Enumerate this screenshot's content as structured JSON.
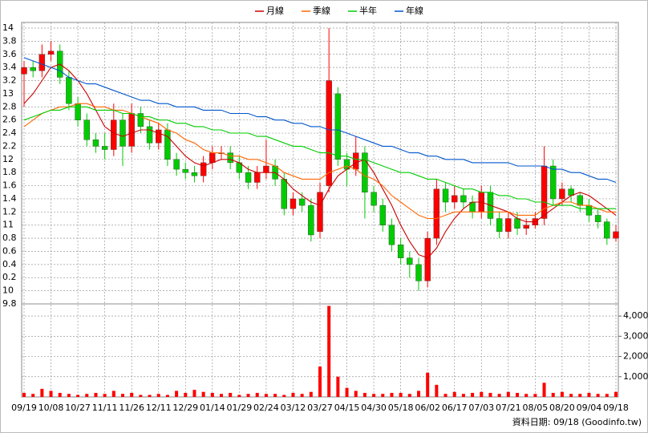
{
  "chart_data": {
    "type": "candlestick",
    "categories": [
      "09/19",
      null,
      null,
      "10/08",
      null,
      null,
      "10/27",
      null,
      null,
      "11/11",
      null,
      null,
      "11/26",
      null,
      null,
      "12/11",
      null,
      null,
      "12/29",
      null,
      null,
      "01/14",
      null,
      null,
      "01/29",
      null,
      null,
      "02/24",
      null,
      null,
      "03/12",
      null,
      null,
      "03/27",
      null,
      null,
      "04/15",
      null,
      null,
      "04/30",
      null,
      null,
      "05/18",
      null,
      null,
      "06/02",
      null,
      null,
      "06/17",
      null,
      null,
      "07/03",
      null,
      null,
      "07/21",
      null,
      null,
      "08/05",
      null,
      null,
      "08/20",
      null,
      null,
      "09/04",
      null,
      null,
      "09/18"
    ],
    "open": [
      13.3,
      13.4,
      13.35,
      13.6,
      13.65,
      13.25,
      12.85,
      12.6,
      12.3,
      12.2,
      12.15,
      12.6,
      12.2,
      12.7,
      12.5,
      12.25,
      12.45,
      12.0,
      11.85,
      11.8,
      11.75,
      11.95,
      12.1,
      12.1,
      11.95,
      11.8,
      11.65,
      11.8,
      11.9,
      11.7,
      11.25,
      11.4,
      11.3,
      10.9,
      11.6,
      13.0,
      12.0,
      11.85,
      12.1,
      11.5,
      11.3,
      11.0,
      10.7,
      10.5,
      10.4,
      10.15,
      10.8,
      11.55,
      11.35,
      11.45,
      11.35,
      11.2,
      11.5,
      11.1,
      10.9,
      11.1,
      10.95,
      11.0,
      11.1,
      11.9,
      11.4,
      11.55,
      11.45,
      11.3,
      11.15,
      11.05,
      10.8
    ],
    "high": [
      13.5,
      13.5,
      13.75,
      13.8,
      13.75,
      13.35,
      12.95,
      12.7,
      12.4,
      12.4,
      12.85,
      12.7,
      12.85,
      12.8,
      12.6,
      12.55,
      12.55,
      12.1,
      11.95,
      11.9,
      12.05,
      12.2,
      12.2,
      12.2,
      12.05,
      11.9,
      11.9,
      12.3,
      12.0,
      11.8,
      11.5,
      11.5,
      11.4,
      11.65,
      14.0,
      13.1,
      12.1,
      12.35,
      12.2,
      11.6,
      11.4,
      11.1,
      10.8,
      10.6,
      10.5,
      10.9,
      11.7,
      11.65,
      11.6,
      11.55,
      11.45,
      11.6,
      11.6,
      11.2,
      11.2,
      11.2,
      11.1,
      11.2,
      12.2,
      12.0,
      11.65,
      11.6,
      11.5,
      11.4,
      11.25,
      11.1,
      11.0
    ],
    "low": [
      12.8,
      13.25,
      13.25,
      13.5,
      13.15,
      12.75,
      12.5,
      12.2,
      12.1,
      12.0,
      12.05,
      11.9,
      12.1,
      12.4,
      12.15,
      12.15,
      11.9,
      11.75,
      11.7,
      11.65,
      11.65,
      11.85,
      12.0,
      11.85,
      11.7,
      11.55,
      11.55,
      11.7,
      11.6,
      11.15,
      11.15,
      11.2,
      10.75,
      10.8,
      11.5,
      11.9,
      11.6,
      11.75,
      11.1,
      11.2,
      10.9,
      10.6,
      10.4,
      10.2,
      10.0,
      10.05,
      10.7,
      11.2,
      11.25,
      11.25,
      11.1,
      11.1,
      11.0,
      10.8,
      10.8,
      10.85,
      10.85,
      10.95,
      11.0,
      11.3,
      11.3,
      11.35,
      11.2,
      11.05,
      10.95,
      10.7,
      10.75
    ],
    "close": [
      13.4,
      13.35,
      13.6,
      13.65,
      13.25,
      12.85,
      12.6,
      12.3,
      12.2,
      12.15,
      12.6,
      12.2,
      12.7,
      12.5,
      12.25,
      12.45,
      12.0,
      11.85,
      11.8,
      11.75,
      11.95,
      12.1,
      12.1,
      11.95,
      11.8,
      11.65,
      11.8,
      11.9,
      11.7,
      11.25,
      11.4,
      11.3,
      10.85,
      11.5,
      13.2,
      12.0,
      11.85,
      12.1,
      11.5,
      11.3,
      11.0,
      10.7,
      10.5,
      10.4,
      10.15,
      10.8,
      11.55,
      11.35,
      11.45,
      11.35,
      11.2,
      11.5,
      11.1,
      10.9,
      11.1,
      10.95,
      11.0,
      11.1,
      11.9,
      11.4,
      11.55,
      11.45,
      11.3,
      11.15,
      11.05,
      10.8,
      10.9
    ],
    "up_color": "#ff0000",
    "down_color": "#00cc00",
    "series": [
      {
        "name": "月線",
        "color": "#cc0000",
        "values": [
          12.85,
          13.0,
          13.2,
          13.4,
          13.45,
          13.35,
          13.2,
          13.0,
          12.75,
          12.5,
          12.4,
          12.35,
          12.4,
          12.45,
          12.45,
          12.4,
          12.35,
          12.2,
          12.05,
          11.95,
          11.9,
          11.95,
          12.0,
          12.0,
          11.95,
          11.85,
          11.8,
          11.8,
          11.8,
          11.7,
          11.55,
          11.45,
          11.35,
          11.3,
          11.55,
          11.75,
          11.85,
          11.95,
          12.0,
          11.8,
          11.55,
          11.3,
          11.0,
          10.75,
          10.55,
          10.5,
          10.65,
          10.9,
          11.1,
          11.25,
          11.35,
          11.35,
          11.3,
          11.25,
          11.2,
          11.1,
          11.05,
          11.05,
          11.15,
          11.25,
          11.35,
          11.45,
          11.5,
          11.45,
          11.35,
          11.25,
          11.15
        ]
      },
      {
        "name": "季線",
        "color": "#ff6600",
        "values": [
          12.5,
          12.6,
          12.7,
          12.75,
          12.8,
          12.8,
          12.85,
          12.85,
          12.8,
          12.8,
          12.75,
          12.75,
          12.7,
          12.65,
          12.6,
          12.55,
          12.45,
          12.4,
          12.3,
          12.25,
          12.15,
          12.1,
          12.1,
          12.05,
          12.05,
          12.0,
          12.0,
          11.95,
          11.9,
          11.8,
          11.75,
          11.7,
          11.7,
          11.7,
          11.8,
          11.85,
          11.9,
          11.85,
          11.75,
          11.7,
          11.6,
          11.45,
          11.35,
          11.25,
          11.15,
          11.1,
          11.1,
          11.15,
          11.2,
          11.2,
          11.2,
          11.2,
          11.2,
          11.2,
          11.2,
          11.15,
          11.15,
          11.15,
          11.25,
          11.3,
          11.35,
          11.35,
          11.3,
          11.3,
          11.25,
          11.2,
          11.2
        ]
      },
      {
        "name": "半年",
        "color": "#00cc00",
        "values": [
          12.6,
          12.65,
          12.7,
          12.75,
          12.75,
          12.8,
          12.8,
          12.8,
          12.75,
          12.75,
          12.75,
          12.7,
          12.7,
          12.65,
          12.65,
          12.6,
          12.6,
          12.55,
          12.55,
          12.5,
          12.5,
          12.45,
          12.45,
          12.4,
          12.4,
          12.4,
          12.35,
          12.35,
          12.3,
          12.25,
          12.2,
          12.2,
          12.15,
          12.1,
          12.1,
          12.05,
          12.05,
          12.0,
          12.0,
          11.95,
          11.9,
          11.85,
          11.8,
          11.8,
          11.75,
          11.7,
          11.7,
          11.65,
          11.6,
          11.55,
          11.55,
          11.5,
          11.5,
          11.45,
          11.45,
          11.4,
          11.4,
          11.35,
          11.35,
          11.3,
          11.3,
          11.3,
          11.25,
          11.25,
          11.25,
          11.25,
          11.25
        ]
      },
      {
        "name": "年線",
        "color": "#0055cc",
        "values": [
          13.55,
          13.5,
          13.45,
          13.4,
          13.35,
          13.25,
          13.2,
          13.15,
          13.15,
          13.1,
          13.05,
          13.0,
          12.95,
          12.9,
          12.9,
          12.85,
          12.85,
          12.8,
          12.8,
          12.8,
          12.75,
          12.75,
          12.75,
          12.7,
          12.7,
          12.7,
          12.65,
          12.65,
          12.6,
          12.6,
          12.55,
          12.55,
          12.5,
          12.5,
          12.45,
          12.45,
          12.4,
          12.35,
          12.3,
          12.25,
          12.2,
          12.2,
          12.15,
          12.1,
          12.1,
          12.05,
          12.05,
          12.0,
          12.0,
          12.0,
          11.95,
          11.95,
          11.95,
          11.95,
          11.95,
          11.9,
          11.9,
          11.9,
          11.9,
          11.85,
          11.85,
          11.8,
          11.8,
          11.75,
          11.7,
          11.7,
          11.65
        ]
      }
    ],
    "ylim": [
      9.8,
      14.0
    ],
    "yticks": [
      14,
      {
        "value": 13.8,
        "label": "3.8"
      },
      {
        "value": 13.6,
        "label": "3.6"
      },
      {
        "value": 13.4,
        "label": "3.4"
      },
      {
        "value": 13.2,
        "label": "3.2"
      },
      13,
      {
        "value": 12.8,
        "label": "2.8"
      },
      {
        "value": 12.6,
        "label": "2.6"
      },
      {
        "value": 12.4,
        "label": "2.4"
      },
      {
        "value": 12.2,
        "label": "2.2"
      },
      12,
      {
        "value": 11.8,
        "label": "1.8"
      },
      {
        "value": 11.6,
        "label": "1.6"
      },
      {
        "value": 11.4,
        "label": "1.4"
      },
      {
        "value": 11.2,
        "label": "1.2"
      },
      11,
      {
        "value": 10.8,
        "label": "0.8"
      },
      {
        "value": 10.6,
        "label": "0.6"
      },
      {
        "value": 10.4,
        "label": "0.4"
      },
      {
        "value": 10.2,
        "label": "0.2"
      },
      10,
      9.8
    ],
    "grid": true,
    "volume": {
      "color": "#ff0000",
      "values": [
        200,
        150,
        400,
        300,
        200,
        150,
        100,
        150,
        200,
        150,
        300,
        150,
        200,
        100,
        100,
        150,
        100,
        300,
        200,
        350,
        250,
        200,
        150,
        200,
        100,
        150,
        200,
        150,
        150,
        100,
        200,
        150,
        250,
        1500,
        4500,
        1000,
        450,
        300,
        200,
        150,
        150,
        200,
        200,
        150,
        300,
        1200,
        600,
        150,
        250,
        150,
        200,
        250,
        200,
        150,
        250,
        200,
        150,
        150,
        700,
        200,
        250,
        150,
        150,
        200,
        150,
        150,
        250
      ],
      "ylim": [
        0,
        4600
      ],
      "yticks": [
        {
          "value": 1000,
          "label": "1,000"
        },
        {
          "value": 2000,
          "label": "2,000"
        },
        {
          "value": 3000,
          "label": "3,000"
        },
        {
          "value": 4000,
          "label": "4,000"
        }
      ]
    },
    "source": "資料日期: 09/18  (Goodinfo.tw)"
  }
}
